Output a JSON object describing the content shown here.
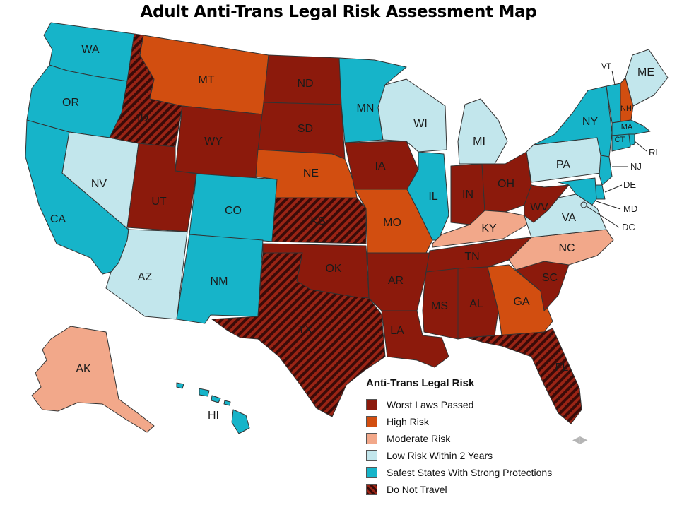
{
  "title": "Adult Anti-Trans Legal Risk Assessment Map",
  "colors": {
    "worst": "#8c1a0c",
    "high": "#d24e10",
    "moderate": "#f2a88a",
    "low": "#c2e6ec",
    "safest": "#16b4c9",
    "donottravel_base": "#3a0b08",
    "donottravel_stripe": "#9a2415"
  },
  "legend": {
    "title": "Anti-Trans Legal Risk",
    "items": [
      {
        "label": "Worst Laws Passed",
        "category": "worst"
      },
      {
        "label": "High Risk",
        "category": "high"
      },
      {
        "label": "Moderate Risk",
        "category": "moderate"
      },
      {
        "label": "Low Risk Within 2 Years",
        "category": "low"
      },
      {
        "label": "Safest States With Strong Protections",
        "category": "safest"
      },
      {
        "label": "Do Not Travel",
        "category": "donottravel"
      }
    ]
  },
  "states": [
    {
      "code": "WA",
      "category": "safest"
    },
    {
      "code": "OR",
      "category": "safest"
    },
    {
      "code": "CA",
      "category": "safest"
    },
    {
      "code": "NV",
      "category": "low"
    },
    {
      "code": "ID",
      "category": "donottravel"
    },
    {
      "code": "MT",
      "category": "high"
    },
    {
      "code": "WY",
      "category": "worst"
    },
    {
      "code": "UT",
      "category": "worst"
    },
    {
      "code": "AZ",
      "category": "low"
    },
    {
      "code": "CO",
      "category": "safest"
    },
    {
      "code": "NM",
      "category": "safest"
    },
    {
      "code": "ND",
      "category": "worst"
    },
    {
      "code": "SD",
      "category": "worst"
    },
    {
      "code": "NE",
      "category": "high"
    },
    {
      "code": "KS",
      "category": "donottravel"
    },
    {
      "code": "OK",
      "category": "worst"
    },
    {
      "code": "TX",
      "category": "donottravel"
    },
    {
      "code": "MN",
      "category": "safest"
    },
    {
      "code": "IA",
      "category": "worst"
    },
    {
      "code": "MO",
      "category": "high"
    },
    {
      "code": "AR",
      "category": "worst"
    },
    {
      "code": "LA",
      "category": "worst"
    },
    {
      "code": "WI",
      "category": "low"
    },
    {
      "code": "IL",
      "category": "safest"
    },
    {
      "code": "MI",
      "category": "low"
    },
    {
      "code": "IN",
      "category": "worst"
    },
    {
      "code": "OH",
      "category": "worst"
    },
    {
      "code": "KY",
      "category": "moderate"
    },
    {
      "code": "TN",
      "category": "worst"
    },
    {
      "code": "MS",
      "category": "worst"
    },
    {
      "code": "AL",
      "category": "worst"
    },
    {
      "code": "GA",
      "category": "high"
    },
    {
      "code": "FL",
      "category": "donottravel"
    },
    {
      "code": "SC",
      "category": "worst"
    },
    {
      "code": "NC",
      "category": "moderate"
    },
    {
      "code": "VA",
      "category": "low"
    },
    {
      "code": "WV",
      "category": "worst"
    },
    {
      "code": "PA",
      "category": "low"
    },
    {
      "code": "NY",
      "category": "safest"
    },
    {
      "code": "VT",
      "category": "safest"
    },
    {
      "code": "NH",
      "category": "high"
    },
    {
      "code": "ME",
      "category": "low"
    },
    {
      "code": "MA",
      "category": "safest"
    },
    {
      "code": "CT",
      "category": "safest"
    },
    {
      "code": "RI",
      "category": "safest"
    },
    {
      "code": "NJ",
      "category": "safest"
    },
    {
      "code": "DE",
      "category": "safest"
    },
    {
      "code": "MD",
      "category": "safest"
    },
    {
      "code": "DC",
      "category": "low"
    },
    {
      "code": "AK",
      "category": "moderate"
    },
    {
      "code": "HI",
      "category": "safest"
    }
  ]
}
